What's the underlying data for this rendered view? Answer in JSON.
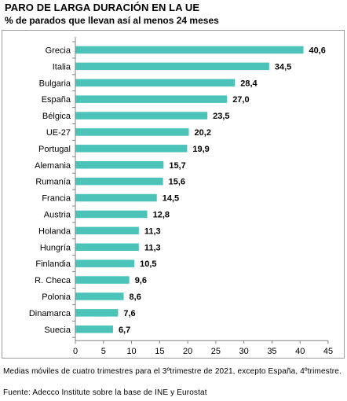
{
  "header": {
    "title": "PARO DE LARGA DURACIÓN EN LA UE",
    "subtitle": "% de parados que llevan así al menos 24 meses"
  },
  "footer": {
    "note": "Medias móviles de cuatro trimestres para el 3ºtrimestre de 2021, excepto España, 4ºtrimestre.",
    "source": "Fuente: Adecco Institute sobre la base de INE y Eurostat"
  },
  "colors": {
    "bar": "#4bc3b9",
    "axis": "#808080"
  },
  "chart_data": {
    "type": "bar",
    "orientation": "horizontal",
    "title": "PARO DE LARGA DURACIÓN EN LA UE",
    "subtitle": "% de parados que llevan así al menos 24 meses",
    "categories": [
      "Grecia",
      "Italia",
      "Bulgaria",
      "España",
      "Bélgica",
      "UE-27",
      "Portugal",
      "Alemania",
      "Rumanía",
      "Francia",
      "Austria",
      "Holanda",
      "Hungría",
      "Finlandia",
      "R. Checa",
      "Polonia",
      "Dinamarca",
      "Suecia"
    ],
    "values": [
      40.6,
      34.5,
      28.4,
      27.0,
      23.5,
      20.2,
      19.9,
      15.7,
      15.6,
      14.5,
      12.8,
      11.3,
      11.3,
      10.5,
      9.6,
      8.6,
      7.6,
      6.7
    ],
    "value_labels": [
      "40,6",
      "34,5",
      "28,4",
      "27,0",
      "23,5",
      "20,2",
      "19,9",
      "15,7",
      "15,6",
      "14,5",
      "12,8",
      "11,3",
      "11,3",
      "10,5",
      "9,6",
      "8,6",
      "7,6",
      "6,7"
    ],
    "xlim": [
      0,
      45
    ],
    "xticks": [
      0,
      5,
      10,
      15,
      20,
      25,
      30,
      35,
      40,
      45
    ],
    "grid": false,
    "legend": "none"
  }
}
